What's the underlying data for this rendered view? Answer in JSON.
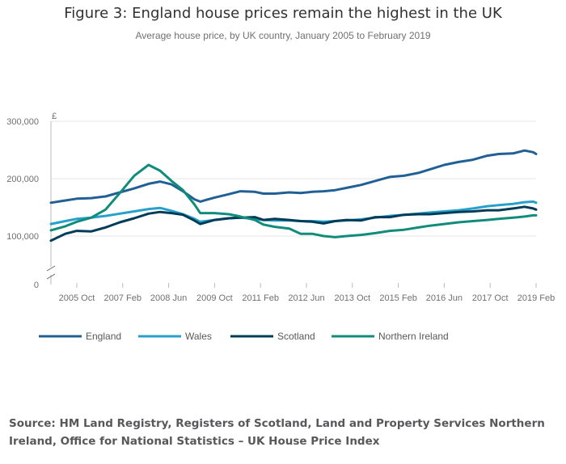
{
  "title": "Figure 3: England house prices remain the highest in the UK",
  "subtitle": "Average house price, by UK country, January 2005 to February 2019",
  "source": "Source: HM Land Registry, Registers of Scotland, Land and Property Services Northern Ireland, Office for National Statistics – UK House Price Index",
  "colors": {
    "England": "#206095",
    "Wales": "#27a0cc",
    "Scotland": "#003c57",
    "Northern Ireland": "#118c7b",
    "gridline": "#e5e5e5",
    "axis": "#bbbbbb",
    "text": "#707071"
  },
  "chart_data": {
    "type": "line",
    "ylabel": "£",
    "xlabel": "",
    "ylim": [
      0,
      300000
    ],
    "axis_break": true,
    "x_start": "2005 Jan",
    "x_end": "2019 Feb",
    "x_ticks": [
      "2005 Oct",
      "2007 Feb",
      "2008 Jun",
      "2009 Oct",
      "2011 Feb",
      "2012 Jun",
      "2013 Oct",
      "2015 Feb",
      "2016 Jun",
      "2017 Oct",
      "2019 Feb"
    ],
    "y_ticks": [
      0,
      100000,
      200000,
      300000
    ],
    "y_tick_labels": [
      "0",
      "100,000",
      "200,000",
      "300,000"
    ],
    "grid": true,
    "legend_position": "bottom",
    "series": [
      {
        "name": "England",
        "points": [
          [
            "2005 Jan",
            158000
          ],
          [
            "2005 Jun",
            162000
          ],
          [
            "2005 Oct",
            165000
          ],
          [
            "2006 Mar",
            166000
          ],
          [
            "2006 Aug",
            169000
          ],
          [
            "2007 Jan",
            176000
          ],
          [
            "2007 Jun",
            183000
          ],
          [
            "2007 Nov",
            191000
          ],
          [
            "2008 Mar",
            195000
          ],
          [
            "2008 Jul",
            190000
          ],
          [
            "2008 Nov",
            178000
          ],
          [
            "2009 Mar",
            164000
          ],
          [
            "2009 May",
            160000
          ],
          [
            "2009 Oct",
            167000
          ],
          [
            "2010 Mar",
            173000
          ],
          [
            "2010 Jul",
            178000
          ],
          [
            "2010 Dec",
            177000
          ],
          [
            "2011 Mar",
            174000
          ],
          [
            "2011 Jul",
            174000
          ],
          [
            "2011 Dec",
            176000
          ],
          [
            "2012 Apr",
            175000
          ],
          [
            "2012 Aug",
            177000
          ],
          [
            "2012 Dec",
            178000
          ],
          [
            "2013 Apr",
            180000
          ],
          [
            "2013 Aug",
            184000
          ],
          [
            "2014 Jan",
            189000
          ],
          [
            "2014 Jun",
            196000
          ],
          [
            "2014 Nov",
            203000
          ],
          [
            "2015 Apr",
            205000
          ],
          [
            "2015 Sep",
            210000
          ],
          [
            "2016 Jan",
            216000
          ],
          [
            "2016 Jun",
            224000
          ],
          [
            "2016 Nov",
            229000
          ],
          [
            "2017 Apr",
            233000
          ],
          [
            "2017 Sep",
            240000
          ],
          [
            "2018 Jan",
            243000
          ],
          [
            "2018 Jun",
            244000
          ],
          [
            "2018 Oct",
            249000
          ],
          [
            "2019 Jan",
            246000
          ],
          [
            "2019 Feb",
            243000
          ]
        ]
      },
      {
        "name": "Wales",
        "points": [
          [
            "2005 Jan",
            121000
          ],
          [
            "2005 Jun",
            126000
          ],
          [
            "2005 Oct",
            130000
          ],
          [
            "2006 Mar",
            132000
          ],
          [
            "2006 Aug",
            135000
          ],
          [
            "2007 Jan",
            139000
          ],
          [
            "2007 Jun",
            143000
          ],
          [
            "2007 Nov",
            147000
          ],
          [
            "2008 Mar",
            149000
          ],
          [
            "2008 Jul",
            144000
          ],
          [
            "2008 Nov",
            138000
          ],
          [
            "2009 Mar",
            130000
          ],
          [
            "2009 May",
            125000
          ],
          [
            "2009 Oct",
            128000
          ],
          [
            "2010 Mar",
            131000
          ],
          [
            "2010 Jul",
            132000
          ],
          [
            "2010 Dec",
            130000
          ],
          [
            "2011 Mar",
            128000
          ],
          [
            "2011 Jul",
            127000
          ],
          [
            "2011 Dec",
            127000
          ],
          [
            "2012 Apr",
            126000
          ],
          [
            "2012 Aug",
            126000
          ],
          [
            "2012 Dec",
            125000
          ],
          [
            "2013 Apr",
            126000
          ],
          [
            "2013 Aug",
            127000
          ],
          [
            "2014 Jan",
            129000
          ],
          [
            "2014 Jun",
            132000
          ],
          [
            "2014 Nov",
            135000
          ],
          [
            "2015 Apr",
            137000
          ],
          [
            "2015 Sep",
            139000
          ],
          [
            "2016 Jan",
            141000
          ],
          [
            "2016 Jun",
            143000
          ],
          [
            "2016 Nov",
            145000
          ],
          [
            "2017 Apr",
            148000
          ],
          [
            "2017 Sep",
            152000
          ],
          [
            "2018 Jan",
            154000
          ],
          [
            "2018 Jun",
            156000
          ],
          [
            "2018 Oct",
            159000
          ],
          [
            "2019 Jan",
            160000
          ],
          [
            "2019 Feb",
            158000
          ]
        ]
      },
      {
        "name": "Scotland",
        "points": [
          [
            "2005 Jan",
            92000
          ],
          [
            "2005 Jun",
            104000
          ],
          [
            "2005 Oct",
            109000
          ],
          [
            "2006 Mar",
            108000
          ],
          [
            "2006 Aug",
            115000
          ],
          [
            "2007 Jan",
            124000
          ],
          [
            "2007 Jun",
            131000
          ],
          [
            "2007 Nov",
            139000
          ],
          [
            "2008 Mar",
            142000
          ],
          [
            "2008 Jul",
            140000
          ],
          [
            "2008 Nov",
            137000
          ],
          [
            "2009 Mar",
            127000
          ],
          [
            "2009 May",
            121000
          ],
          [
            "2009 Oct",
            128000
          ],
          [
            "2010 Mar",
            131000
          ],
          [
            "2010 Jul",
            132000
          ],
          [
            "2010 Dec",
            133000
          ],
          [
            "2011 Mar",
            128000
          ],
          [
            "2011 Jul",
            130000
          ],
          [
            "2011 Dec",
            128000
          ],
          [
            "2012 Apr",
            126000
          ],
          [
            "2012 Aug",
            125000
          ],
          [
            "2012 Dec",
            122000
          ],
          [
            "2013 Apr",
            126000
          ],
          [
            "2013 Aug",
            128000
          ],
          [
            "2014 Jan",
            127000
          ],
          [
            "2014 Jun",
            133000
          ],
          [
            "2014 Nov",
            133000
          ],
          [
            "2015 Apr",
            137000
          ],
          [
            "2015 Sep",
            138000
          ],
          [
            "2016 Jan",
            138000
          ],
          [
            "2016 Jun",
            140000
          ],
          [
            "2016 Nov",
            142000
          ],
          [
            "2017 Apr",
            143000
          ],
          [
            "2017 Sep",
            145000
          ],
          [
            "2018 Jan",
            145000
          ],
          [
            "2018 Jun",
            148000
          ],
          [
            "2018 Oct",
            151000
          ],
          [
            "2019 Jan",
            148000
          ],
          [
            "2019 Feb",
            146000
          ]
        ]
      },
      {
        "name": "Northern Ireland",
        "points": [
          [
            "2005 Jan",
            110000
          ],
          [
            "2005 Jun",
            117000
          ],
          [
            "2005 Oct",
            125000
          ],
          [
            "2006 Mar",
            132000
          ],
          [
            "2006 Aug",
            146000
          ],
          [
            "2007 Jan",
            175000
          ],
          [
            "2007 Jun",
            205000
          ],
          [
            "2007 Nov",
            224000
          ],
          [
            "2008 Mar",
            214000
          ],
          [
            "2008 Jul",
            196000
          ],
          [
            "2008 Nov",
            180000
          ],
          [
            "2009 Mar",
            155000
          ],
          [
            "2009 May",
            140000
          ],
          [
            "2009 Oct",
            140000
          ],
          [
            "2010 Mar",
            138000
          ],
          [
            "2010 Jul",
            134000
          ],
          [
            "2010 Dec",
            128000
          ],
          [
            "2011 Mar",
            120000
          ],
          [
            "2011 Jul",
            116000
          ],
          [
            "2011 Dec",
            113000
          ],
          [
            "2012 Apr",
            104000
          ],
          [
            "2012 Aug",
            104000
          ],
          [
            "2012 Dec",
            100000
          ],
          [
            "2013 Apr",
            98000
          ],
          [
            "2013 Aug",
            100000
          ],
          [
            "2014 Jan",
            102000
          ],
          [
            "2014 Jun",
            105000
          ],
          [
            "2014 Nov",
            109000
          ],
          [
            "2015 Apr",
            111000
          ],
          [
            "2015 Sep",
            115000
          ],
          [
            "2016 Jan",
            118000
          ],
          [
            "2016 Jun",
            121000
          ],
          [
            "2016 Nov",
            124000
          ],
          [
            "2017 Apr",
            126000
          ],
          [
            "2017 Sep",
            128000
          ],
          [
            "2018 Jan",
            130000
          ],
          [
            "2018 Jun",
            132000
          ],
          [
            "2018 Oct",
            134000
          ],
          [
            "2019 Jan",
            136000
          ],
          [
            "2019 Feb",
            136000
          ]
        ]
      }
    ]
  }
}
